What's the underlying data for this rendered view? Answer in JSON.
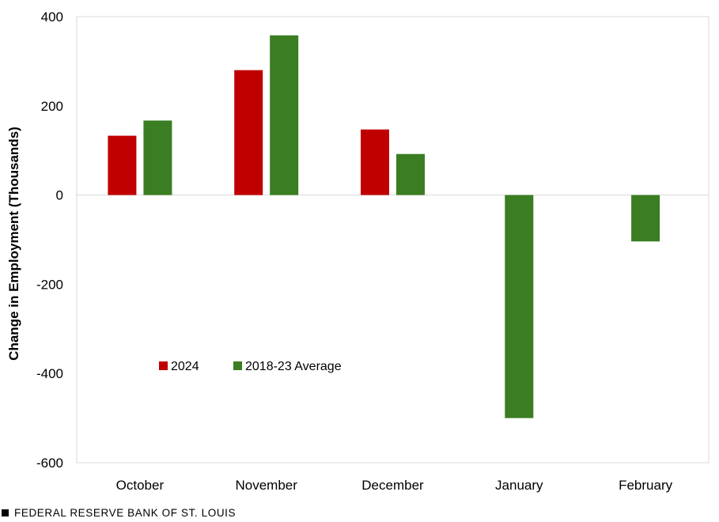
{
  "chart_data": {
    "type": "bar",
    "categories": [
      "October",
      "November",
      "December",
      "January",
      "February"
    ],
    "series": [
      {
        "name": "2024",
        "color": "#c00000",
        "values": [
          133,
          280,
          147,
          null,
          null
        ]
      },
      {
        "name": "2018-23 Average",
        "color": "#3a7d22",
        "values": [
          167,
          358,
          92,
          -500,
          -104
        ]
      }
    ],
    "ylabel": "Change in Employment (Thousands)",
    "yticks": [
      400,
      200,
      0,
      -200,
      -400,
      -600
    ],
    "ytick_labels": [
      "400",
      "200",
      "0",
      "-200",
      "-400",
      "-600"
    ],
    "ylim": [
      -600,
      400
    ],
    "legend_placement": "lower-left inside plot",
    "grid": false
  },
  "footer": {
    "source": "FEDERAL RESERVE BANK OF ST. LOUIS"
  }
}
